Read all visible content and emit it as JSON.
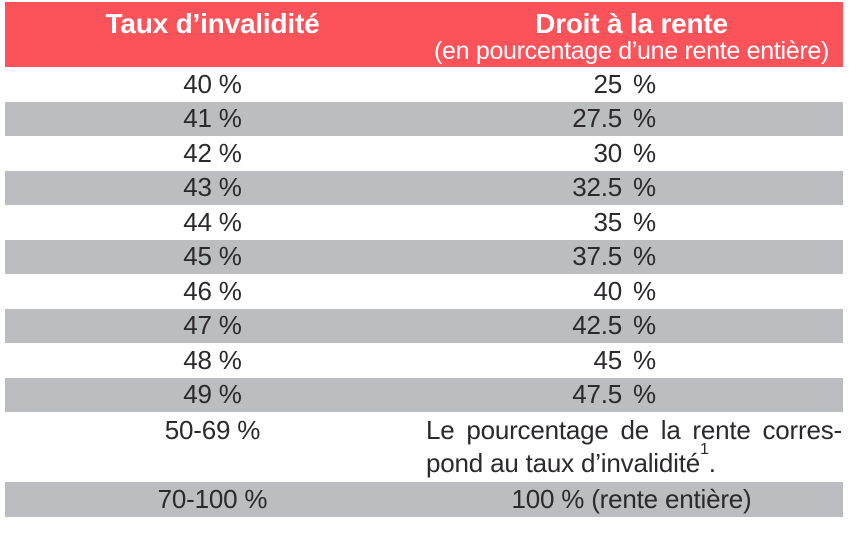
{
  "colors": {
    "header_bg": "#fc535a",
    "header_text": "#ffffff",
    "row_alt_bg": "#bbbdc1",
    "body_text": "#2b292c",
    "row_bg": "#ffffff"
  },
  "table": {
    "header": {
      "col1_title": "Taux d’invalidité",
      "col2_title": "Droit à la rente",
      "col2_subtitle": "(en pourcentage d’une rente entière)"
    },
    "rows": [
      {
        "taux": "40 %",
        "rente_num": "25",
        "rente_unit": "%"
      },
      {
        "taux": "41 %",
        "rente_num": "27.5",
        "rente_unit": "%"
      },
      {
        "taux": "42 %",
        "rente_num": "30",
        "rente_unit": "%"
      },
      {
        "taux": "43 %",
        "rente_num": "32.5",
        "rente_unit": "%"
      },
      {
        "taux": "44 %",
        "rente_num": "35",
        "rente_unit": "%"
      },
      {
        "taux": "45 %",
        "rente_num": "37.5",
        "rente_unit": "%"
      },
      {
        "taux": "46 %",
        "rente_num": "40",
        "rente_unit": "%"
      },
      {
        "taux": "47 %",
        "rente_num": "42.5",
        "rente_unit": "%"
      },
      {
        "taux": "48 %",
        "rente_num": "45",
        "rente_unit": "%"
      },
      {
        "taux": "49 %",
        "rente_num": "47.5",
        "rente_unit": "%"
      }
    ],
    "special_row": {
      "taux": "50-69 %",
      "line1": "Le pourcentage de la rente corres-",
      "line2": "pond au taux d’invalidité",
      "footnote_ref": "1",
      "line2_end": "."
    },
    "last_row": {
      "taux": "70-100 %",
      "rente": "100 % (rente entière)"
    }
  }
}
